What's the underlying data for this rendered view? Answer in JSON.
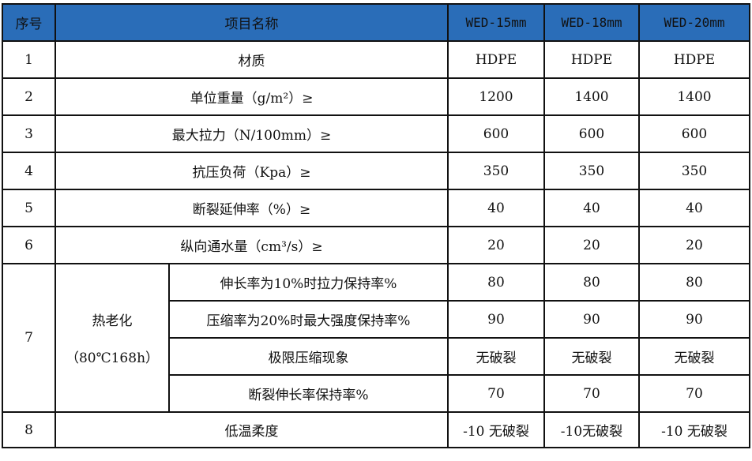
{
  "header": {
    "no": "序号",
    "item": "项目名称",
    "models": [
      "WED-15mm",
      "WED-18mm",
      "WED-20mm"
    ]
  },
  "header_color": "#2a6db8",
  "rows": [
    {
      "no": "1",
      "item": "材质",
      "values": [
        "HDPE",
        "HDPE",
        "HDPE"
      ]
    },
    {
      "no": "2",
      "item": "单位重量（g/m²）≥",
      "values": [
        "1200",
        "1400",
        "1400"
      ]
    },
    {
      "no": "3",
      "item": "最大拉力（N/100mm）≥",
      "values": [
        "600",
        "600",
        "600"
      ]
    },
    {
      "no": "4",
      "item": "抗压负荷（Kpa）≥",
      "values": [
        "350",
        "350",
        "350"
      ]
    },
    {
      "no": "5",
      "item": "断裂延伸率（%）≥",
      "values": [
        "40",
        "40",
        "40"
      ]
    },
    {
      "no": "6",
      "item": "纵向通水量（cm³/s）≥",
      "values": [
        "20",
        "20",
        "20"
      ]
    }
  ],
  "aging": {
    "no": "7",
    "group": "热老化",
    "condition": "（80℃168h）",
    "subrows": [
      {
        "item": "伸长率为10%时拉力保持率%",
        "values": [
          "80",
          "80",
          "80"
        ]
      },
      {
        "item": "压缩率为20%时最大强度保持率%",
        "values": [
          "90",
          "90",
          "90"
        ]
      },
      {
        "item": "极限压缩现象",
        "values": [
          "无破裂",
          "无破裂",
          "无破裂"
        ]
      },
      {
        "item": "断裂伸长率保持率%",
        "values": [
          "70",
          "70",
          "70"
        ]
      }
    ]
  },
  "last": {
    "no": "8",
    "item": "低温柔度",
    "values": [
      "-10 无破裂",
      "-10无破裂",
      "-10 无破裂"
    ]
  }
}
